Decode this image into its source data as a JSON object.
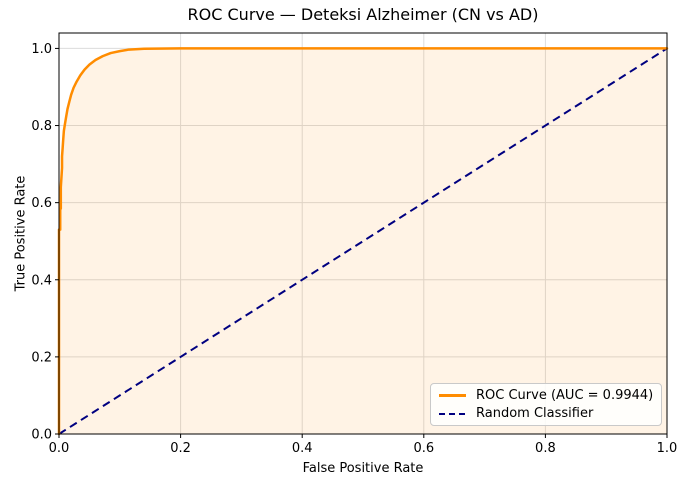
{
  "chart_data": {
    "type": "line",
    "title": "ROC Curve — Deteksi Alzheimer (CN vs AD)",
    "xlabel": "False Positive Rate",
    "ylabel": "True Positive Rate",
    "xlim": [
      0.0,
      1.0
    ],
    "ylim": [
      0.0,
      1.04
    ],
    "x_ticks": [
      0.0,
      0.2,
      0.4,
      0.6,
      0.8,
      1.0
    ],
    "y_ticks": [
      0.0,
      0.2,
      0.4,
      0.6,
      0.8,
      1.0
    ],
    "x_tick_labels": [
      "0.0",
      "0.2",
      "0.4",
      "0.6",
      "0.8",
      "1.0"
    ],
    "y_tick_labels": [
      "0.0",
      "0.2",
      "0.4",
      "0.6",
      "0.8",
      "1.0"
    ],
    "grid": true,
    "grid_color": "#dcdcdc",
    "legend_position": "lower right",
    "auc": 0.9944,
    "series": [
      {
        "name": "ROC Curve (AUC = 0.9944)",
        "color": "#ff8c00",
        "style": "solid",
        "line_width": 2.5,
        "fill_color": "rgba(255,140,0,0.10)",
        "fill_to_zero": true,
        "x": [
          0.0,
          0.0,
          0.002,
          0.002,
          0.003,
          0.003,
          0.004,
          0.005,
          0.005,
          0.006,
          0.007,
          0.008,
          0.01,
          0.012,
          0.014,
          0.017,
          0.02,
          0.024,
          0.029,
          0.035,
          0.042,
          0.05,
          0.06,
          0.072,
          0.085,
          0.1,
          0.115,
          0.14,
          0.2,
          1.0
        ],
        "y": [
          0.0,
          0.53,
          0.53,
          0.585,
          0.585,
          0.64,
          0.665,
          0.69,
          0.72,
          0.742,
          0.765,
          0.786,
          0.806,
          0.825,
          0.843,
          0.862,
          0.88,
          0.898,
          0.914,
          0.93,
          0.945,
          0.958,
          0.97,
          0.98,
          0.988,
          0.993,
          0.997,
          0.999,
          1.0,
          1.0
        ]
      },
      {
        "name": "Random Classifier",
        "color": "#000080",
        "style": "dashed",
        "line_width": 2,
        "x": [
          0.0,
          1.0
        ],
        "y": [
          0.0,
          1.0
        ]
      }
    ]
  },
  "legend": {
    "items": [
      {
        "label": "ROC Curve (AUC = 0.9944)"
      },
      {
        "label": "Random Classifier"
      }
    ]
  }
}
